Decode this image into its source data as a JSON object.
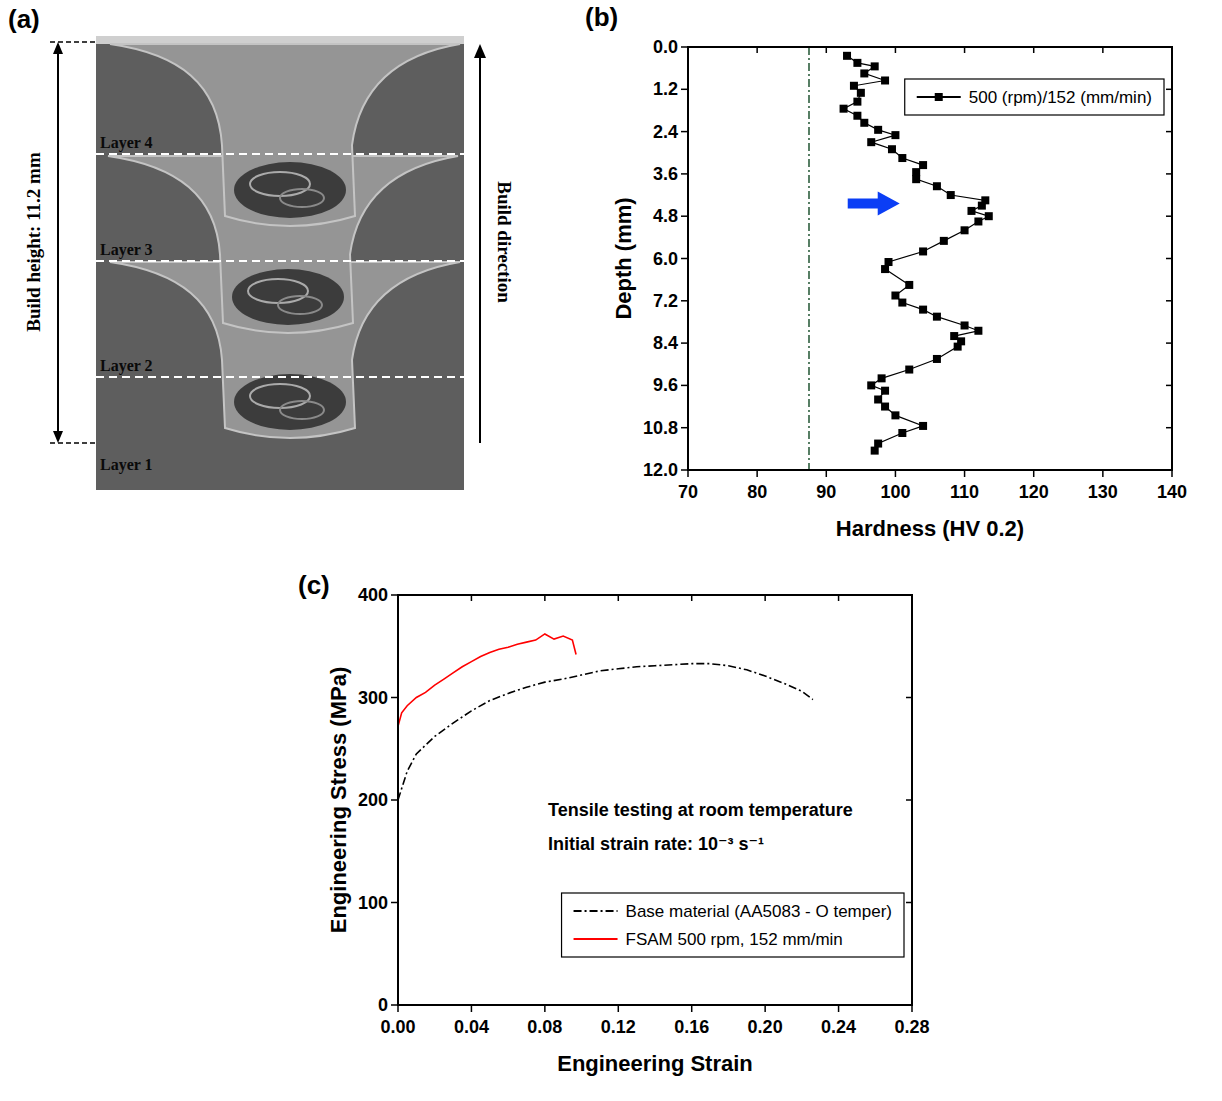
{
  "chart_data": [
    {
      "type": "image",
      "title": "(a)",
      "annotations": [
        "Build height: 11.2 mm",
        "Build direction",
        "Layer 4",
        "Layer 3",
        "Layer 2",
        "Layer 1"
      ]
    },
    {
      "type": "line",
      "title": "(b)",
      "x_label": "Hardness (HV 0.2)",
      "y_label": "Depth (mm)",
      "xlim": [
        70,
        140
      ],
      "xticks": [
        70,
        80,
        90,
        100,
        110,
        120,
        130,
        140
      ],
      "ylim": [
        12,
        0
      ],
      "yticks": [
        {
          "value": 0,
          "label": "0.0"
        },
        1.2,
        2.4,
        3.6,
        4.8,
        {
          "value": 6,
          "label": "6.0"
        },
        7.2,
        8.4,
        9.6,
        10.8,
        {
          "value": 12,
          "label": "12.0"
        }
      ],
      "grid": false,
      "legend": "upper right",
      "series": [
        {
          "name": "500 (rpm)/152 (mm/min)",
          "color": "#000000",
          "marker": "square",
          "line_style": "solid",
          "x": [
            93,
            94.5,
            97,
            95.5,
            98.5,
            94,
            95,
            94.5,
            92.5,
            94.5,
            95.5,
            97.5,
            100,
            96.5,
            99.5,
            101,
            104,
            103,
            103,
            106,
            108,
            113,
            112.5,
            111,
            113.5,
            112,
            110,
            107,
            104,
            99,
            98.5,
            102,
            100,
            101,
            104,
            106,
            110,
            112,
            108.5,
            109.5,
            109,
            106,
            102,
            98,
            96.5,
            98.5,
            97.5,
            98.5,
            100,
            104,
            101,
            97.5,
            97
          ],
          "values": [
            0.25,
            0.45,
            0.55,
            0.75,
            0.95,
            1.1,
            1.3,
            1.55,
            1.75,
            1.95,
            2.15,
            2.35,
            2.5,
            2.7,
            2.9,
            3.15,
            3.35,
            3.55,
            3.75,
            3.95,
            4.2,
            4.35,
            4.5,
            4.65,
            4.8,
            4.95,
            5.2,
            5.5,
            5.8,
            6.1,
            6.3,
            6.75,
            7.05,
            7.25,
            7.45,
            7.65,
            7.9,
            8.05,
            8.2,
            8.35,
            8.5,
            8.85,
            9.15,
            9.4,
            9.6,
            9.75,
            10.0,
            10.2,
            10.45,
            10.75,
            10.95,
            11.25,
            11.45
          ]
        },
        {
          "color": "#2f5f3f",
          "marker": "none",
          "line_style": "dashdot",
          "x": [
            87.5,
            87.5
          ],
          "values": [
            0,
            12
          ]
        }
      ]
    },
    {
      "type": "line",
      "title": "(c)",
      "x_label": "Engineering Strain",
      "y_label": "Engineering Stress (MPa)",
      "xlim": [
        0,
        0.28
      ],
      "xticks": [
        {
          "value": 0,
          "label": "0.00"
        },
        0.04,
        0.08,
        0.12,
        0.16,
        {
          "value": 0.2,
          "label": "0.20"
        },
        0.24,
        0.28
      ],
      "ylim": [
        0,
        400
      ],
      "yticks": [
        0,
        100,
        200,
        300,
        400
      ],
      "grid": false,
      "legend": "lower right",
      "annotations": [
        "Tensile testing at room temperature",
        "Initial strain rate: 10⁻³ s⁻¹"
      ],
      "series": [
        {
          "name": "Base material (AA5083 - O temper)",
          "color": "#000000",
          "marker": "none",
          "line_style": "dashdot",
          "x": [
            0,
            0.005,
            0.01,
            0.02,
            0.03,
            0.04,
            0.05,
            0.06,
            0.07,
            0.08,
            0.09,
            0.1,
            0.11,
            0.12,
            0.13,
            0.14,
            0.15,
            0.16,
            0.17,
            0.18,
            0.19,
            0.2,
            0.21,
            0.22,
            0.226
          ],
          "values": [
            200,
            228,
            245,
            262,
            275,
            287,
            297,
            304,
            310,
            315,
            318,
            322,
            326,
            328,
            330,
            331,
            332,
            333,
            333,
            331,
            327,
            321,
            314,
            306,
            298
          ]
        },
        {
          "name": "FSAM 500 rpm, 152 mm/min",
          "color": "#ff0000",
          "marker": "none",
          "line_style": "solid",
          "x": [
            0,
            0.002,
            0.005,
            0.01,
            0.015,
            0.02,
            0.025,
            0.03,
            0.035,
            0.04,
            0.045,
            0.05,
            0.055,
            0.06,
            0.065,
            0.07,
            0.075,
            0.08,
            0.085,
            0.09,
            0.095,
            0.097
          ],
          "values": [
            272,
            285,
            292,
            300,
            305,
            312,
            318,
            324,
            330,
            335,
            340,
            344,
            347,
            349,
            352,
            354,
            356,
            362,
            357,
            360,
            356,
            342
          ]
        }
      ]
    }
  ]
}
